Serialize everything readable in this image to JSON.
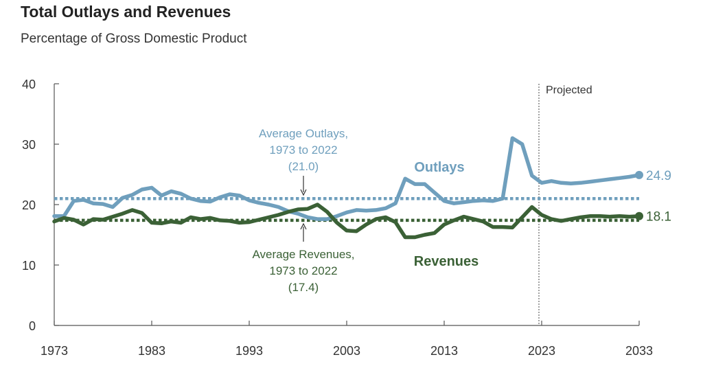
{
  "title": "Total Outlays and Revenues",
  "subtitle": "Percentage of Gross Domestic Product",
  "colors": {
    "outlays": "#6f9fbd",
    "revenues": "#3b6136",
    "axis": "#555555",
    "text": "#333333"
  },
  "chart_data": {
    "type": "line",
    "title": "Total Outlays and Revenues",
    "subtitle": "Percentage of Gross Domestic Product",
    "xlim": [
      1973,
      2033
    ],
    "ylim": [
      0,
      40
    ],
    "x_ticks": [
      1973,
      1983,
      1993,
      2003,
      2013,
      2023,
      2033
    ],
    "x_tick_labels": [
      "1973",
      "1983",
      "1993",
      "2003",
      "2013",
      "2023",
      "2033"
    ],
    "y_ticks": [
      0,
      10,
      20,
      30,
      40
    ],
    "y_tick_labels": [
      "0",
      "10",
      "20",
      "30",
      "40"
    ],
    "grid": false,
    "projected_start": 2023,
    "projected_label": "Projected",
    "series": [
      {
        "name": "Outlays",
        "x": [
          1973,
          1974,
          1975,
          1976,
          1977,
          1978,
          1979,
          1980,
          1981,
          1982,
          1983,
          1984,
          1985,
          1986,
          1987,
          1988,
          1989,
          1990,
          1991,
          1992,
          1993,
          1994,
          1995,
          1996,
          1997,
          1998,
          1999,
          2000,
          2001,
          2002,
          2003,
          2004,
          2005,
          2006,
          2007,
          2008,
          2009,
          2010,
          2011,
          2012,
          2013,
          2014,
          2015,
          2016,
          2017,
          2018,
          2019,
          2020,
          2021,
          2022,
          2023,
          2024,
          2025,
          2026,
          2027,
          2028,
          2029,
          2030,
          2031,
          2032,
          2033
        ],
        "values": [
          18.1,
          18.1,
          20.6,
          20.8,
          20.2,
          20.1,
          19.6,
          21.1,
          21.6,
          22.5,
          22.8,
          21.5,
          22.2,
          21.8,
          21.0,
          20.6,
          20.5,
          21.2,
          21.7,
          21.5,
          20.7,
          20.3,
          20.0,
          19.6,
          18.9,
          18.5,
          17.9,
          17.6,
          17.6,
          18.1,
          18.7,
          19.1,
          19.0,
          19.1,
          19.4,
          20.2,
          24.3,
          23.4,
          23.4,
          22.0,
          20.6,
          20.2,
          20.4,
          20.6,
          20.7,
          20.6,
          21.0,
          31.0,
          30.0,
          24.8,
          23.6,
          23.9,
          23.6,
          23.5,
          23.6,
          23.8,
          24.0,
          24.2,
          24.4,
          24.6,
          24.9
        ],
        "end_label": "24.9"
      },
      {
        "name": "Revenues",
        "x": [
          1973,
          1974,
          1975,
          1976,
          1977,
          1978,
          1979,
          1980,
          1981,
          1982,
          1983,
          1984,
          1985,
          1986,
          1987,
          1988,
          1989,
          1990,
          1991,
          1992,
          1993,
          1994,
          1995,
          1996,
          1997,
          1998,
          1999,
          2000,
          2001,
          2002,
          2003,
          2004,
          2005,
          2006,
          2007,
          2008,
          2009,
          2010,
          2011,
          2012,
          2013,
          2014,
          2015,
          2016,
          2017,
          2018,
          2019,
          2020,
          2021,
          2022,
          2023,
          2024,
          2025,
          2026,
          2027,
          2028,
          2029,
          2030,
          2031,
          2032,
          2033
        ],
        "values": [
          17.2,
          17.8,
          17.5,
          16.7,
          17.6,
          17.5,
          18.0,
          18.5,
          19.1,
          18.6,
          17.0,
          16.9,
          17.2,
          17.0,
          17.9,
          17.6,
          17.8,
          17.4,
          17.3,
          17.0,
          17.1,
          17.5,
          17.9,
          18.3,
          18.8,
          19.2,
          19.3,
          20.0,
          18.8,
          17.0,
          15.7,
          15.6,
          16.7,
          17.6,
          17.9,
          17.1,
          14.6,
          14.6,
          15.0,
          15.3,
          16.7,
          17.4,
          18.0,
          17.6,
          17.2,
          16.3,
          16.3,
          16.2,
          17.9,
          19.6,
          18.3,
          17.6,
          17.3,
          17.6,
          17.9,
          18.1,
          18.1,
          18.0,
          18.1,
          18.0,
          18.1
        ],
        "end_label": "18.1"
      }
    ],
    "reference_lines": [
      {
        "series": "Outlays",
        "value": 21.0
      },
      {
        "series": "Revenues",
        "value": 17.4
      }
    ],
    "annotations": {
      "outlays_label": "Outlays",
      "revenues_label": "Revenues",
      "avg_outlays_line1": "Average Outlays,",
      "avg_outlays_line2": "1973 to 2022",
      "avg_outlays_line3": "(21.0)",
      "avg_revenues_line1": "Average Revenues,",
      "avg_revenues_line2": "1973 to 2022",
      "avg_revenues_line3": "(17.4)"
    }
  }
}
